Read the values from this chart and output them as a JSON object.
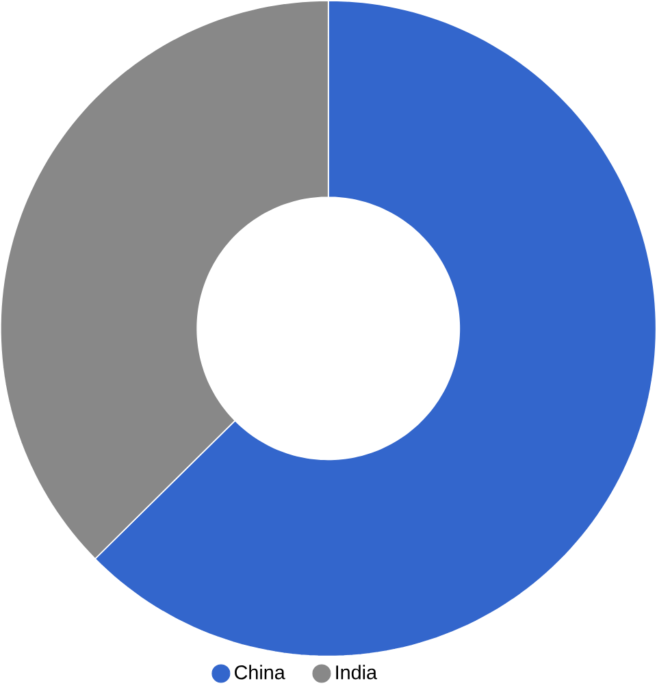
{
  "chart_data": {
    "type": "donut",
    "categories": [
      "China",
      "India"
    ],
    "values": [
      62.6,
      37.4
    ],
    "colors": [
      "#3366cc",
      "#888888"
    ],
    "legend": "bottom"
  }
}
